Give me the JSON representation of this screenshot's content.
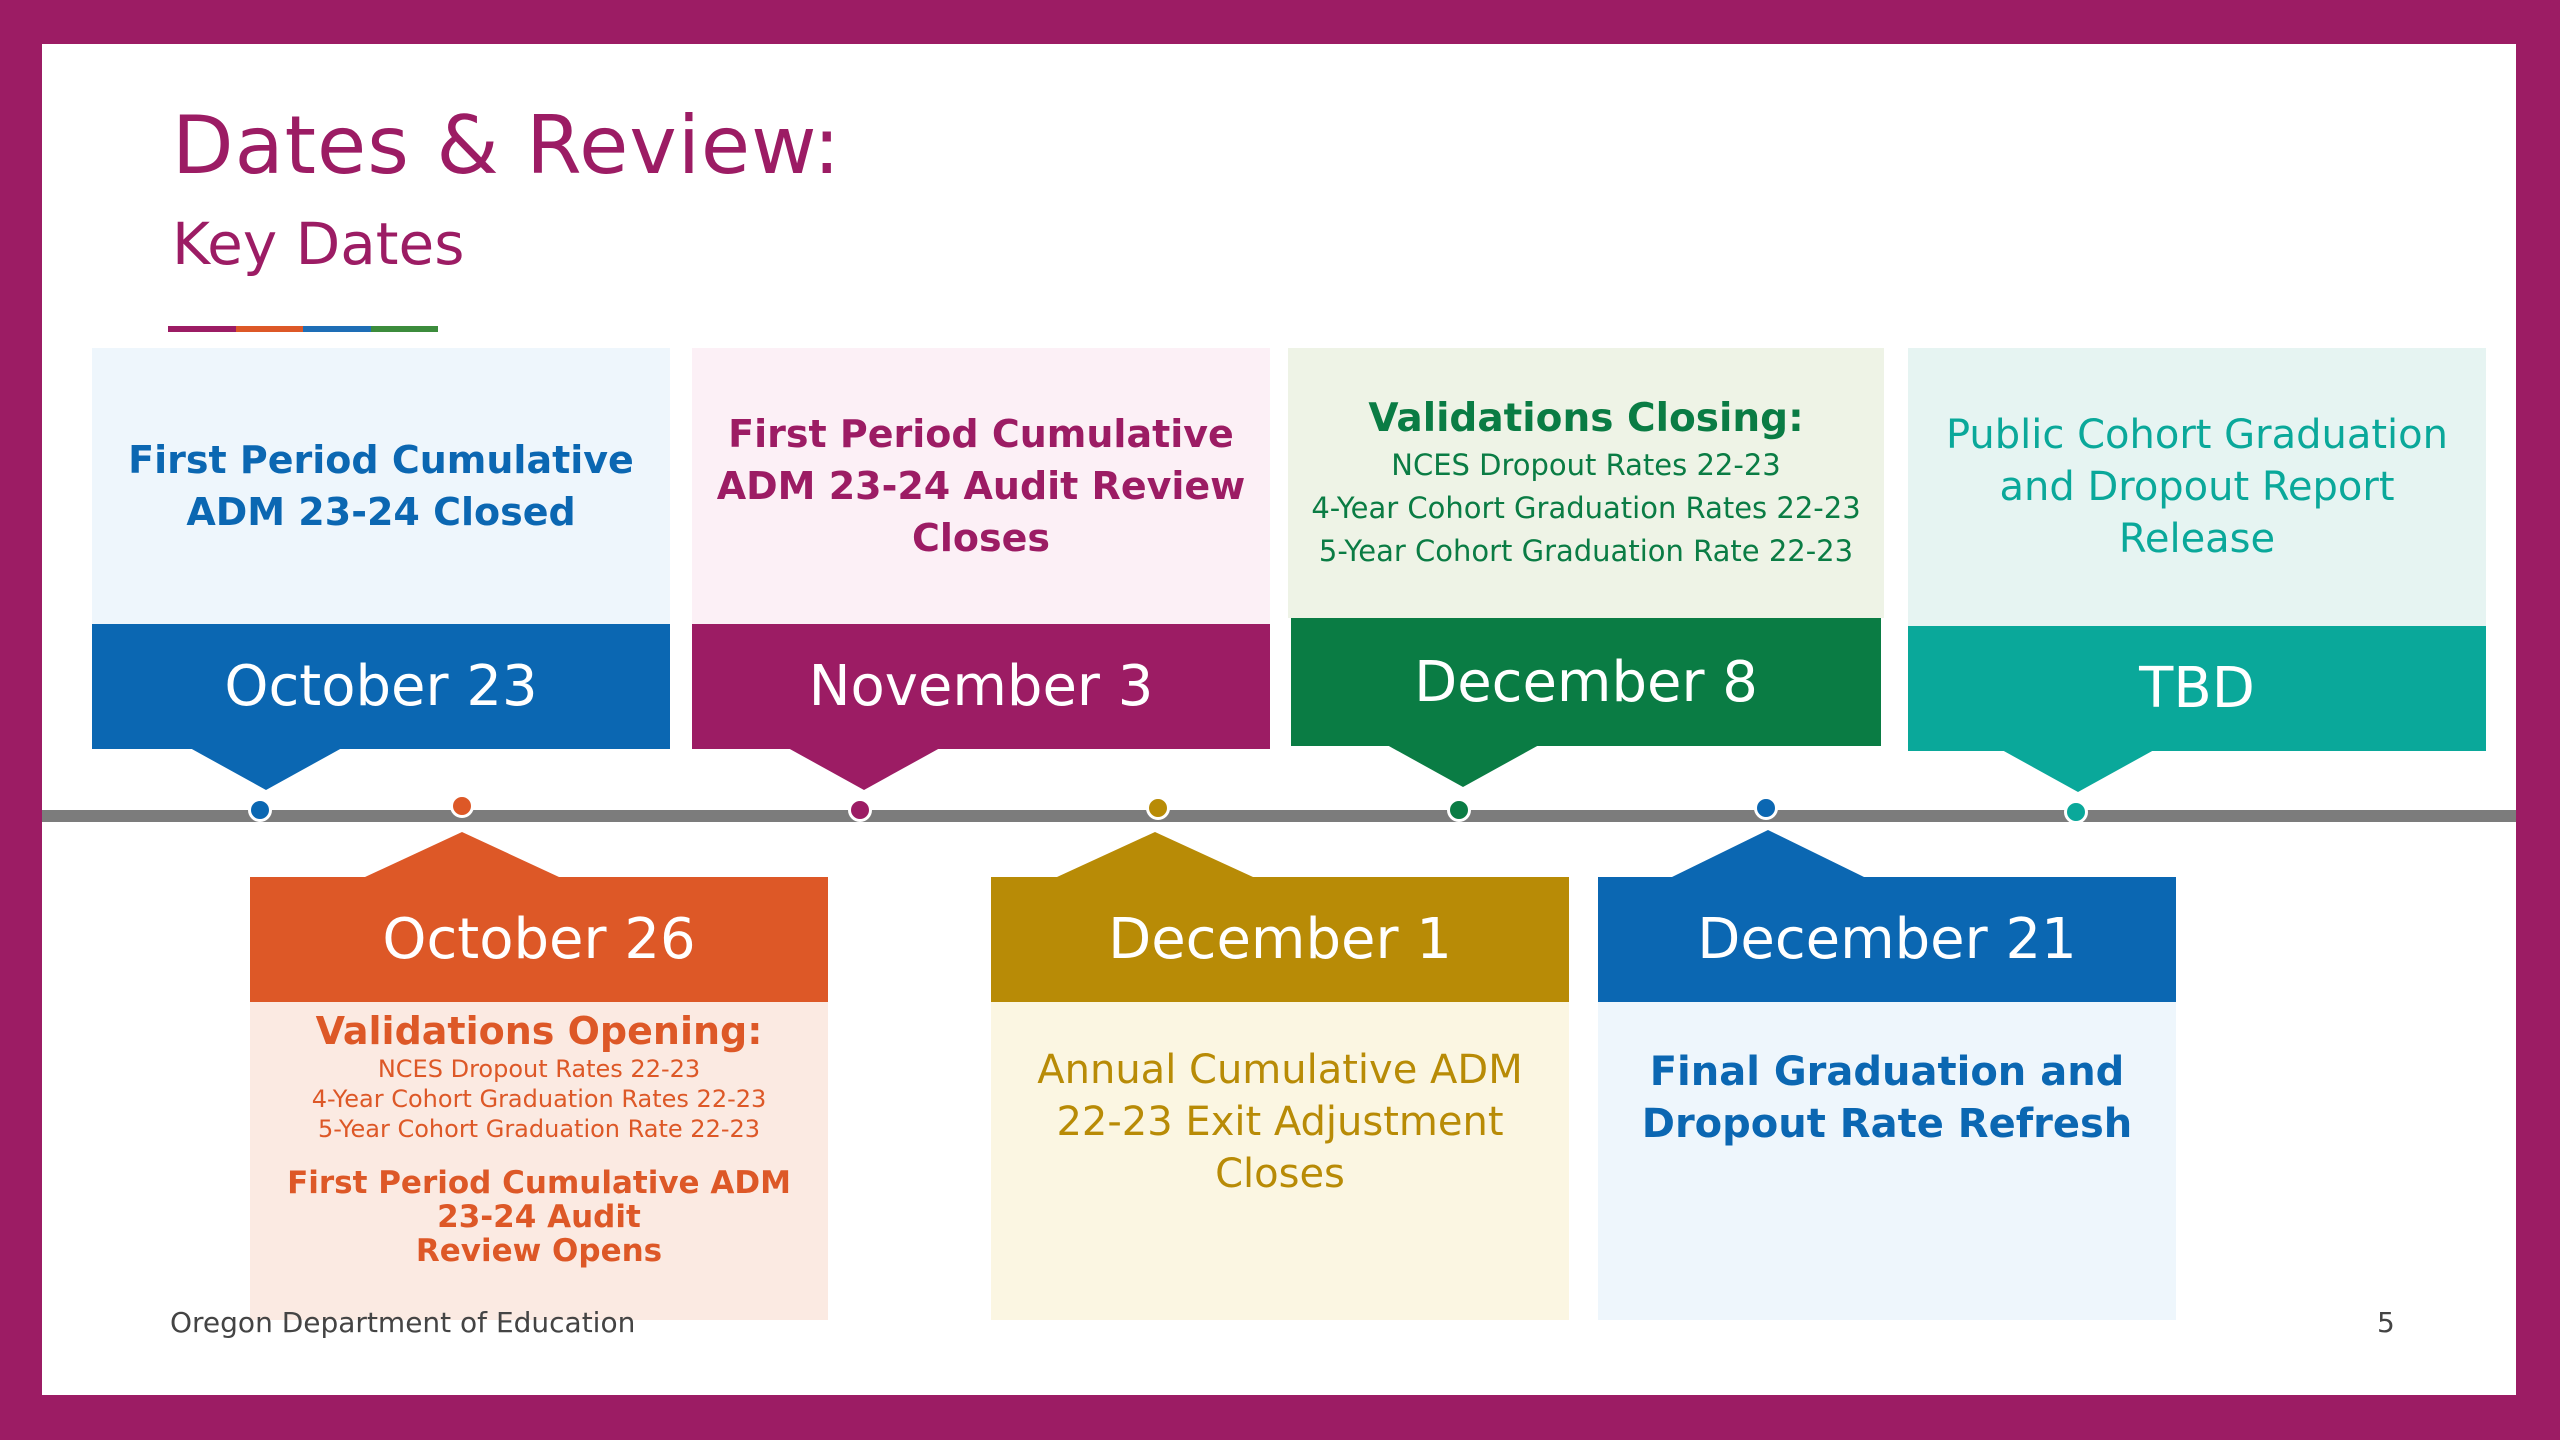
{
  "header": {
    "title": "Dates & Review:",
    "subtitle": "Key Dates",
    "underline_colors": [
      "#9c1c64",
      "#dd5827",
      "#1e6eb6",
      "#3c8c3c"
    ]
  },
  "top_events": [
    {
      "date": "October 23",
      "lines": [
        "First Period Cumulative",
        "ADM 23-24 Closed"
      ],
      "color": "#0b67b2",
      "bg": "#eef6fc"
    },
    {
      "date": "November 3",
      "lines": [
        "First Period Cumulative",
        "ADM 23-24 Audit Review",
        "Closes"
      ],
      "color": "#9c1c64",
      "bg": "#fcf0f6"
    },
    {
      "date": "December 8",
      "heading": "Validations Closing:",
      "items": [
        "NCES Dropout Rates 22-23",
        "4-Year Cohort Graduation Rates 22-23",
        "5-Year Cohort Graduation Rate 22-23"
      ],
      "color": "#0a7c44",
      "bg": "#eef3e6"
    },
    {
      "date": "TBD",
      "lines": [
        "Public Cohort Graduation",
        "and Dropout Report",
        "Release"
      ],
      "color": "#0aa89a",
      "bg": "#e6f4f2"
    }
  ],
  "bottom_events": [
    {
      "date": "October 26",
      "heading": "Validations Opening:",
      "items": [
        "NCES Dropout Rates 22-23",
        "4-Year Cohort Graduation Rates 22-23",
        "5-Year Cohort Graduation Rate 22-23"
      ],
      "extra": [
        "First Period Cumulative ADM 23-24 Audit",
        "Review Opens"
      ],
      "color": "#dd5827",
      "bg": "#fbeae2"
    },
    {
      "date": "December 1",
      "lines": [
        "Annual Cumulative ADM",
        "22-23 Exit Adjustment",
        "Closes"
      ],
      "color": "#b88b06",
      "bg": "#fbf6e2"
    },
    {
      "date": "December 21",
      "lines": [
        "Final Graduation and",
        "Dropout Rate Refresh"
      ],
      "color": "#0b67b2",
      "bg": "#eef6fc"
    }
  ],
  "timeline_dots": [
    "#0b67b2",
    "#dd5827",
    "#9c1c64",
    "#b88b06",
    "#0a7c44",
    "#0b67b2",
    "#0aa89a"
  ],
  "footer": {
    "org": "Oregon Department of Education",
    "page_number": "5"
  }
}
